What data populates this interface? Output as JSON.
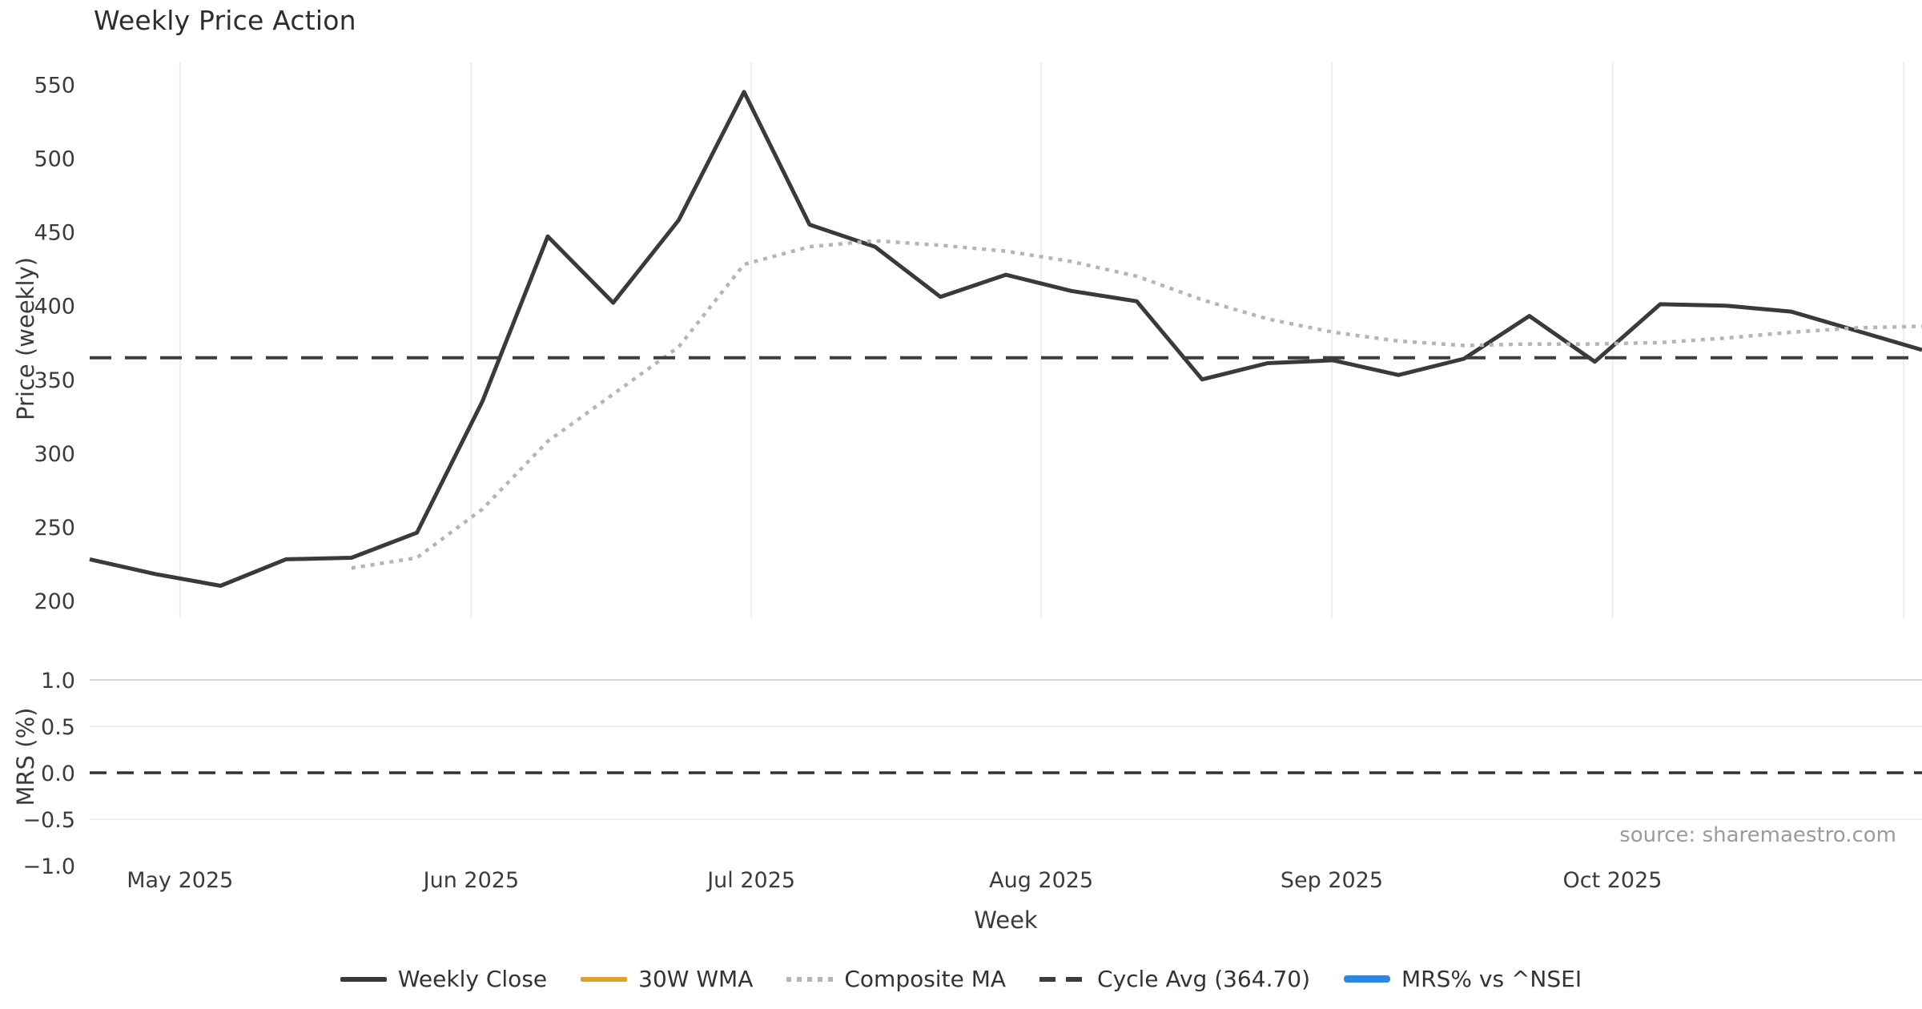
{
  "title": "Weekly Price Action",
  "axes": {
    "price_ylabel": "Price (weekly)",
    "mrs_ylabel": "MRS (%)",
    "xlabel": "Week"
  },
  "source_note": "source: sharemaestro.com",
  "legend": [
    {
      "label": "Weekly Close",
      "style": "solid",
      "color": "#3a3a3a"
    },
    {
      "label": "30W WMA",
      "style": "solid",
      "color": "#dfa32b"
    },
    {
      "label": "Composite MA",
      "style": "dotted",
      "color": "#b5b5b5"
    },
    {
      "label": "Cycle Avg (364.70)",
      "style": "dashed",
      "color": "#3d3d3d"
    },
    {
      "label": "MRS% vs ^NSEI",
      "style": "solid-thick",
      "color": "#2e86e0"
    }
  ],
  "chart_data": [
    {
      "type": "line",
      "panel": "price",
      "title": "Weekly Price Action",
      "xlabel": "Week",
      "ylabel": "Price (weekly)",
      "ylim": [
        188,
        565
      ],
      "yticks": [
        550,
        500,
        450,
        400,
        350,
        300,
        250,
        200
      ],
      "x_unit": "week_index",
      "n_points": 29,
      "grid": "vertical-month-lines",
      "grid_color": "#ebedee",
      "xticks": [
        {
          "label": "May 2025",
          "week_index": 1.38
        },
        {
          "label": "Jun 2025",
          "week_index": 5.83
        },
        {
          "label": "Jul 2025",
          "week_index": 10.11
        },
        {
          "label": "Aug 2025",
          "week_index": 14.54
        },
        {
          "label": "Sep 2025",
          "week_index": 18.98
        },
        {
          "label": "Oct 2025",
          "week_index": 23.27
        },
        {
          "label": "",
          "week_index": 27.72
        }
      ],
      "series": [
        {
          "name": "Weekly Close",
          "style": "solid",
          "color": "#3a3a3a",
          "width": 5,
          "start_index": 0,
          "values": [
            228,
            218,
            210,
            228,
            229,
            246,
            335,
            447,
            402,
            458,
            545,
            455,
            440,
            406,
            421,
            410,
            403,
            350,
            361,
            363,
            353,
            364,
            393,
            362,
            401,
            400,
            396,
            383,
            370
          ]
        },
        {
          "name": "Composite MA",
          "style": "dotted",
          "color": "#b5b5b5",
          "width": 4.5,
          "start_index": 4,
          "values": [
            222,
            229,
            262,
            308,
            340,
            372,
            428,
            440,
            444,
            441,
            437,
            430,
            420,
            404,
            391,
            382,
            376,
            373,
            374,
            374,
            375,
            378,
            382,
            385,
            386
          ]
        },
        {
          "name": "Cycle Avg (364.70)",
          "style": "dashed",
          "color": "#3d3d3d",
          "width": 4,
          "constant": 364.7
        }
      ]
    },
    {
      "type": "line",
      "panel": "mrs",
      "ylabel": "MRS (%)",
      "ylim": [
        -1.05,
        1.05
      ],
      "yticks": [
        1.0,
        0.5,
        0.0,
        -0.5,
        -1.0
      ],
      "ytick_labels": [
        "1.0",
        "0.5",
        "0.0",
        "−0.5",
        "−1.0"
      ],
      "grid": "horizontal-lines",
      "series": [
        {
          "name": "Zero line",
          "style": "dashed",
          "color": "#333333",
          "width": 3.5,
          "constant": 0.0
        }
      ]
    }
  ]
}
